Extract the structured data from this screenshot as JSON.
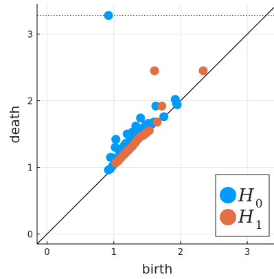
{
  "chart_data": {
    "type": "scatter",
    "title": "",
    "xlabel": "birth",
    "ylabel": "death",
    "xlim": [
      -0.15,
      3.4
    ],
    "ylim": [
      -0.15,
      3.45
    ],
    "xticks": [
      0,
      1,
      2,
      3
    ],
    "yticks": [
      0,
      1,
      2,
      3
    ],
    "xtick_labels": [
      "0",
      "1",
      "2",
      "3"
    ],
    "ytick_labels": [
      "0",
      "1",
      "2",
      "3"
    ],
    "grid": true,
    "diagonal": true,
    "infinity_line": 3.28,
    "legend_position": "bottom-right",
    "series": [
      {
        "name": "H",
        "subscript": "0",
        "color": "#009AFA",
        "points": [
          [
            0.92,
            3.28
          ],
          [
            0.92,
            0.96
          ],
          [
            0.95,
            0.98
          ],
          [
            0.98,
            1.02
          ],
          [
            0.95,
            1.15
          ],
          [
            1.0,
            1.14
          ],
          [
            1.02,
            1.3
          ],
          [
            1.03,
            1.42
          ],
          [
            1.05,
            1.12
          ],
          [
            1.08,
            1.25
          ],
          [
            1.1,
            1.2
          ],
          [
            1.12,
            1.28
          ],
          [
            1.15,
            1.32
          ],
          [
            1.18,
            1.36
          ],
          [
            1.2,
            1.5
          ],
          [
            1.22,
            1.38
          ],
          [
            1.25,
            1.42
          ],
          [
            1.28,
            1.53
          ],
          [
            1.3,
            1.46
          ],
          [
            1.33,
            1.62
          ],
          [
            1.35,
            1.5
          ],
          [
            1.38,
            1.56
          ],
          [
            1.4,
            1.74
          ],
          [
            1.42,
            1.52
          ],
          [
            1.45,
            1.6
          ],
          [
            1.48,
            1.64
          ],
          [
            1.5,
            1.58
          ],
          [
            1.52,
            1.66
          ],
          [
            1.55,
            1.64
          ],
          [
            1.6,
            1.68
          ],
          [
            1.63,
            1.92
          ],
          [
            1.75,
            1.76
          ],
          [
            1.92,
            2.02
          ],
          [
            1.94,
            1.96
          ],
          [
            1.95,
            1.94
          ]
        ]
      },
      {
        "name": "H",
        "subscript": "1",
        "color": "#E26F46",
        "points": [
          [
            1.61,
            2.45
          ],
          [
            2.34,
            2.45
          ],
          [
            1.72,
            1.92
          ],
          [
            1.65,
            1.68
          ],
          [
            1.03,
            1.07
          ],
          [
            1.07,
            1.1
          ],
          [
            1.1,
            1.14
          ],
          [
            1.13,
            1.17
          ],
          [
            1.16,
            1.2
          ],
          [
            1.19,
            1.23
          ],
          [
            1.22,
            1.26
          ],
          [
            1.25,
            1.29
          ],
          [
            1.28,
            1.32
          ],
          [
            1.32,
            1.37
          ],
          [
            1.36,
            1.42
          ],
          [
            1.4,
            1.46
          ],
          [
            1.44,
            1.48
          ],
          [
            1.47,
            1.5
          ],
          [
            1.5,
            1.53
          ],
          [
            1.53,
            1.55
          ]
        ]
      }
    ]
  }
}
